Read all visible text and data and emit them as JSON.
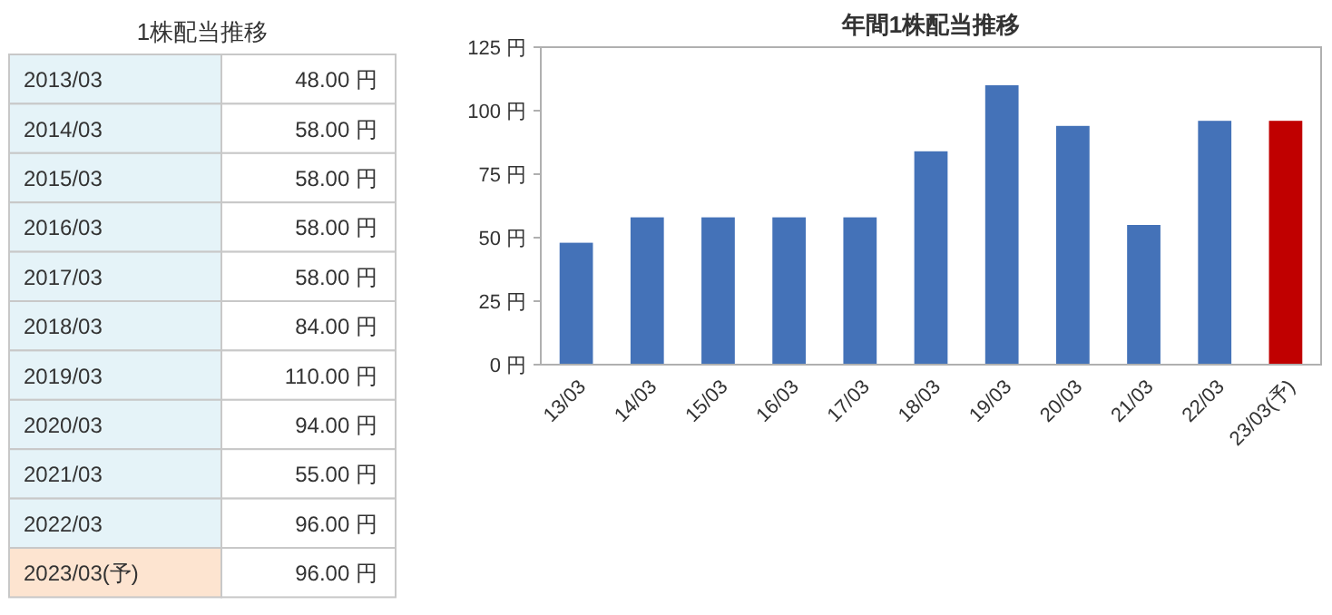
{
  "chart_data": [
    {
      "type": "other",
      "title": "1株配当推移",
      "categories": [
        "2013/03",
        "2014/03",
        "2015/03",
        "2016/03",
        "2017/03",
        "2018/03",
        "2019/03",
        "2020/03",
        "2021/03",
        "2022/03",
        "2023/03(予)"
      ],
      "values": [
        48,
        58,
        58,
        58,
        58,
        84,
        110,
        94,
        55,
        96,
        96
      ],
      "value_labels": [
        "48.00 円",
        "58.00 円",
        "58.00 円",
        "58.00 円",
        "58.00 円",
        "84.00 円",
        "110.00 円",
        "94.00 円",
        "55.00 円",
        "96.00 円",
        "96.00 円"
      ]
    },
    {
      "type": "bar",
      "title": "年間1株配当推移",
      "categories": [
        "13/03",
        "14/03",
        "15/03",
        "16/03",
        "17/03",
        "18/03",
        "19/03",
        "20/03",
        "21/03",
        "22/03",
        "23/03(予)"
      ],
      "values": [
        48,
        58,
        58,
        58,
        58,
        84,
        110,
        94,
        55,
        96,
        96
      ],
      "colors": [
        "#4472b8",
        "#4472b8",
        "#4472b8",
        "#4472b8",
        "#4472b8",
        "#4472b8",
        "#4472b8",
        "#4472b8",
        "#4472b8",
        "#4472b8",
        "#c00000"
      ],
      "ylim": [
        0,
        125
      ],
      "yticks": [
        {
          "value": 0,
          "label": "0 円"
        },
        {
          "value": 25,
          "label": "25 円"
        },
        {
          "value": 50,
          "label": "50 円"
        },
        {
          "value": 75,
          "label": "75 円"
        },
        {
          "value": 100,
          "label": "100 円"
        },
        {
          "value": 125,
          "label": "125 円"
        }
      ]
    }
  ]
}
